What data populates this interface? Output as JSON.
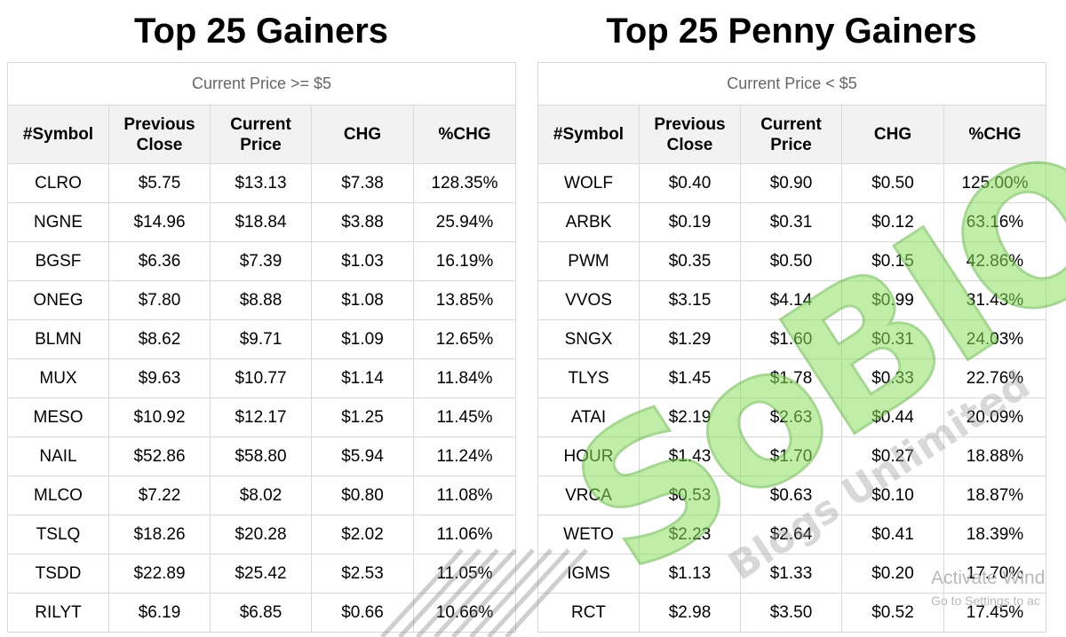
{
  "left": {
    "title": "Top 25 Gainers",
    "caption": "Current Price >= $5",
    "headers": [
      "#Symbol",
      "Previous Close",
      "Current Price",
      "CHG",
      "%CHG"
    ],
    "rows": [
      [
        "CLRO",
        "$5.75",
        "$13.13",
        "$7.38",
        "128.35%"
      ],
      [
        "NGNE",
        "$14.96",
        "$18.84",
        "$3.88",
        "25.94%"
      ],
      [
        "BGSF",
        "$6.36",
        "$7.39",
        "$1.03",
        "16.19%"
      ],
      [
        "ONEG",
        "$7.80",
        "$8.88",
        "$1.08",
        "13.85%"
      ],
      [
        "BLMN",
        "$8.62",
        "$9.71",
        "$1.09",
        "12.65%"
      ],
      [
        "MUX",
        "$9.63",
        "$10.77",
        "$1.14",
        "11.84%"
      ],
      [
        "MESO",
        "$10.92",
        "$12.17",
        "$1.25",
        "11.45%"
      ],
      [
        "NAIL",
        "$52.86",
        "$58.80",
        "$5.94",
        "11.24%"
      ],
      [
        "MLCO",
        "$7.22",
        "$8.02",
        "$0.80",
        "11.08%"
      ],
      [
        "TSLQ",
        "$18.26",
        "$20.28",
        "$2.02",
        "11.06%"
      ],
      [
        "TSDD",
        "$22.89",
        "$25.42",
        "$2.53",
        "11.05%"
      ],
      [
        "RILYT",
        "$6.19",
        "$6.85",
        "$0.66",
        "10.66%"
      ]
    ]
  },
  "right": {
    "title": "Top 25 Penny Gainers",
    "caption": "Current Price < $5",
    "headers": [
      "#Symbol",
      "Previous Close",
      "Current Price",
      "CHG",
      "%CHG"
    ],
    "rows": [
      [
        "WOLF",
        "$0.40",
        "$0.90",
        "$0.50",
        "125.00%"
      ],
      [
        "ARBK",
        "$0.19",
        "$0.31",
        "$0.12",
        "63.16%"
      ],
      [
        "PWM",
        "$0.35",
        "$0.50",
        "$0.15",
        "42.86%"
      ],
      [
        "VVOS",
        "$3.15",
        "$4.14",
        "$0.99",
        "31.43%"
      ],
      [
        "SNGX",
        "$1.29",
        "$1.60",
        "$0.31",
        "24.03%"
      ],
      [
        "TLYS",
        "$1.45",
        "$1.78",
        "$0.33",
        "22.76%"
      ],
      [
        "ATAI",
        "$2.19",
        "$2.63",
        "$0.44",
        "20.09%"
      ],
      [
        "HOUR",
        "$1.43",
        "$1.70",
        "$0.27",
        "18.88%"
      ],
      [
        "VRCA",
        "$0.53",
        "$0.63",
        "$0.10",
        "18.87%"
      ],
      [
        "WETO",
        "$2.23",
        "$2.64",
        "$0.41",
        "18.39%"
      ],
      [
        "IGMS",
        "$1.13",
        "$1.33",
        "$0.20",
        "17.70%"
      ],
      [
        "RCT",
        "$2.98",
        "$3.50",
        "$0.52",
        "17.45%"
      ]
    ]
  },
  "watermark": {
    "brand": "SoBIO",
    "tagline": "Blogs Unlimited",
    "color": "#7ed957"
  },
  "os_overlay": {
    "line1": "Activate Wind",
    "line2": "Go to Settings to ac"
  }
}
